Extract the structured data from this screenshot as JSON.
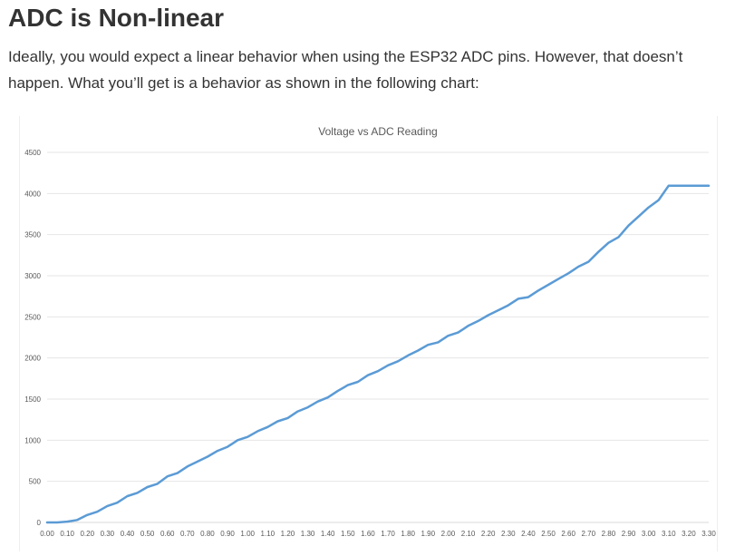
{
  "article": {
    "heading": "ADC is Non-linear",
    "paragraph": "Ideally, you would expect a linear behavior when using the ESP32 ADC pins. However, that doesn’t happen. What you’ll get is a behavior as shown in the following chart:"
  },
  "chart_data": {
    "type": "line",
    "title": "Voltage vs ADC Reading",
    "xlabel": "",
    "ylabel": "",
    "ylim": [
      0,
      4500
    ],
    "yticks": [
      0,
      500,
      1000,
      1500,
      2000,
      2500,
      3000,
      3500,
      4000,
      4500
    ],
    "grid": true,
    "legend": "none",
    "line_color": "#5b9bd5",
    "categories": [
      "0.00",
      "0.10",
      "0.20",
      "0.30",
      "0.40",
      "0.50",
      "0.60",
      "0.70",
      "0.80",
      "0.90",
      "1.00",
      "1.10",
      "1.20",
      "1.30",
      "1.40",
      "1.50",
      "1.60",
      "1.70",
      "1.80",
      "1.90",
      "2.00",
      "2.10",
      "2.20",
      "2.30",
      "2.40",
      "2.50",
      "2.60",
      "2.70",
      "2.80",
      "2.90",
      "3.00",
      "3.10",
      "3.20",
      "3.30"
    ],
    "x": [
      0.0,
      0.05,
      0.1,
      0.15,
      0.2,
      0.25,
      0.3,
      0.35,
      0.4,
      0.45,
      0.5,
      0.55,
      0.6,
      0.65,
      0.7,
      0.75,
      0.8,
      0.85,
      0.9,
      0.95,
      1.0,
      1.05,
      1.1,
      1.15,
      1.2,
      1.25,
      1.3,
      1.35,
      1.4,
      1.45,
      1.5,
      1.55,
      1.6,
      1.65,
      1.7,
      1.75,
      1.8,
      1.85,
      1.9,
      1.95,
      2.0,
      2.05,
      2.1,
      2.15,
      2.2,
      2.25,
      2.3,
      2.35,
      2.4,
      2.45,
      2.5,
      2.55,
      2.6,
      2.65,
      2.7,
      2.75,
      2.8,
      2.85,
      2.9,
      2.95,
      3.0,
      3.05,
      3.1,
      3.15,
      3.2,
      3.25,
      3.3
    ],
    "values": [
      0,
      0,
      10,
      30,
      90,
      130,
      200,
      240,
      320,
      360,
      430,
      470,
      560,
      600,
      680,
      740,
      800,
      870,
      920,
      1000,
      1040,
      1110,
      1160,
      1230,
      1270,
      1350,
      1400,
      1470,
      1520,
      1600,
      1670,
      1710,
      1790,
      1840,
      1910,
      1960,
      2030,
      2090,
      2160,
      2190,
      2270,
      2310,
      2390,
      2450,
      2520,
      2580,
      2640,
      2720,
      2740,
      2820,
      2890,
      2960,
      3030,
      3110,
      3170,
      3290,
      3400,
      3470,
      3610,
      3720,
      3830,
      3920,
      4095,
      4095,
      4095,
      4095,
      4095
    ]
  }
}
